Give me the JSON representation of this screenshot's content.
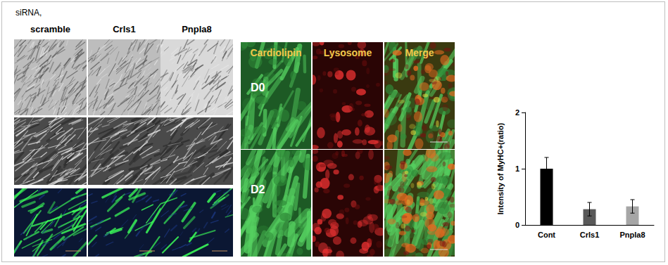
{
  "header": "siRNA,",
  "panels": {
    "knockdown": {
      "columns": [
        "scramble",
        "Crls1",
        "Pnpla8"
      ]
    },
    "staining": {
      "columns": [
        "Cardiolipin",
        "Lysosome",
        "Merge"
      ],
      "rows": [
        "D0",
        "D2"
      ]
    }
  },
  "chart_data": {
    "type": "bar",
    "categories": [
      "Cont",
      "Crls1",
      "Pnpla8"
    ],
    "values": [
      1,
      0.28,
      0.33
    ],
    "errors": [
      0.2,
      0.12,
      0.12
    ],
    "colors": [
      "#000000",
      "#595959",
      "#a6a6a6"
    ],
    "ylabel": "Intensity of MyHC+(ratio)",
    "ylim": [
      0,
      2
    ],
    "yticks": [
      0,
      1,
      2
    ],
    "grid": false
  }
}
